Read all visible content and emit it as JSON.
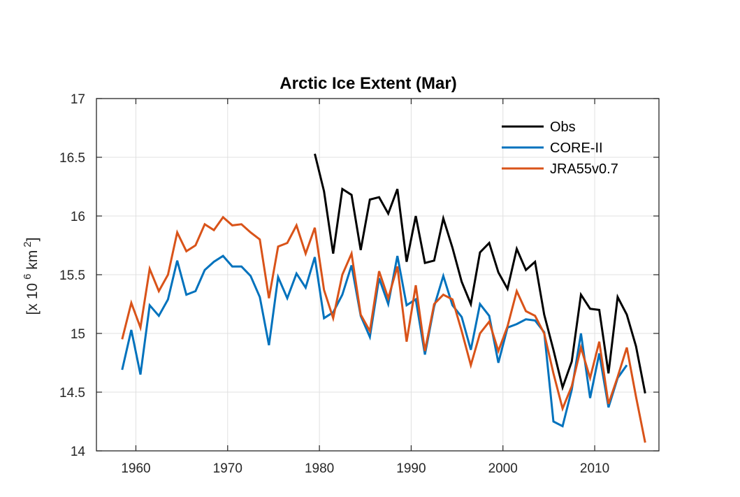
{
  "chart_data": {
    "type": "line",
    "title": "Arctic Ice Extent (Mar)",
    "xlabel": "",
    "ylabel": {
      "prefix": "[x 10",
      "exponent": "6",
      "unit": " km",
      "unit_exponent": "2",
      "suffix": "]"
    },
    "xlim": [
      1955.7,
      2017
    ],
    "ylim": [
      14,
      17
    ],
    "xticks": [
      1960,
      1970,
      1980,
      1990,
      2000,
      2010
    ],
    "xtick_labels": [
      "1960",
      "1970",
      "1980",
      "1990",
      "2000",
      "2010"
    ],
    "yticks": [
      14,
      14.5,
      15,
      15.5,
      16,
      16.5,
      17
    ],
    "ytick_labels": [
      "14",
      "14.5",
      "15",
      "15.5",
      "16",
      "16.5",
      "17"
    ],
    "grid": true,
    "legend_position": "top-right",
    "series": [
      {
        "name": "Obs",
        "color": "#000000",
        "x": [
          1979.5,
          1980.5,
          1981.5,
          1982.5,
          1983.5,
          1984.5,
          1985.5,
          1986.5,
          1987.5,
          1988.5,
          1989.5,
          1990.5,
          1991.5,
          1992.5,
          1993.5,
          1994.5,
          1995.5,
          1996.5,
          1997.5,
          1998.5,
          1999.5,
          2000.5,
          2001.5,
          2002.5,
          2003.5,
          2004.5,
          2005.5,
          2006.5,
          2007.5,
          2008.5,
          2009.5,
          2010.5,
          2011.5,
          2012.5,
          2013.5,
          2014.5,
          2015.5
        ],
        "values": [
          16.53,
          16.21,
          15.68,
          16.23,
          16.18,
          15.71,
          16.14,
          16.16,
          16.02,
          16.23,
          15.61,
          16.0,
          15.6,
          15.62,
          15.98,
          15.73,
          15.44,
          15.25,
          15.69,
          15.77,
          15.52,
          15.38,
          15.72,
          15.54,
          15.61,
          15.16,
          14.86,
          14.54,
          14.76,
          15.33,
          15.21,
          15.2,
          14.66,
          15.31,
          15.16,
          14.89,
          14.49
        ]
      },
      {
        "name": "CORE-II",
        "color": "#0072bd",
        "x": [
          1958.5,
          1959.5,
          1960.5,
          1961.5,
          1962.5,
          1963.5,
          1964.5,
          1965.5,
          1966.5,
          1967.5,
          1968.5,
          1969.5,
          1970.5,
          1971.5,
          1972.5,
          1973.5,
          1974.5,
          1975.5,
          1976.5,
          1977.5,
          1978.5,
          1979.5,
          1980.5,
          1981.5,
          1982.5,
          1983.5,
          1984.5,
          1985.5,
          1986.5,
          1987.5,
          1988.5,
          1989.5,
          1990.5,
          1991.5,
          1992.5,
          1993.5,
          1994.5,
          1995.5,
          1996.5,
          1997.5,
          1998.5,
          1999.5,
          2000.5,
          2001.5,
          2002.5,
          2003.5,
          2004.5,
          2005.5,
          2006.5,
          2007.5,
          2008.5,
          2009.5,
          2010.5,
          2011.5,
          2012.5,
          2013.5
        ],
        "values": [
          14.69,
          15.03,
          14.65,
          15.24,
          15.15,
          15.29,
          15.62,
          15.33,
          15.36,
          15.54,
          15.61,
          15.66,
          15.57,
          15.57,
          15.49,
          15.31,
          14.9,
          15.48,
          15.3,
          15.51,
          15.39,
          15.65,
          15.13,
          15.18,
          15.33,
          15.58,
          15.15,
          14.97,
          15.47,
          15.25,
          15.66,
          15.24,
          15.29,
          14.82,
          15.23,
          15.49,
          15.24,
          15.14,
          14.86,
          15.25,
          15.15,
          14.75,
          15.05,
          15.08,
          15.12,
          15.11,
          15.01,
          14.25,
          14.21,
          14.52,
          15.0,
          14.45,
          14.83,
          14.37,
          14.62,
          14.73
        ]
      },
      {
        "name": "JRA55v0.7",
        "color": "#d95319",
        "x": [
          1958.5,
          1959.5,
          1960.5,
          1961.5,
          1962.5,
          1963.5,
          1964.5,
          1965.5,
          1966.5,
          1967.5,
          1968.5,
          1969.5,
          1970.5,
          1971.5,
          1972.5,
          1973.5,
          1974.5,
          1975.5,
          1976.5,
          1977.5,
          1978.5,
          1979.5,
          1980.5,
          1981.5,
          1982.5,
          1983.5,
          1984.5,
          1985.5,
          1986.5,
          1987.5,
          1988.5,
          1989.5,
          1990.5,
          1991.5,
          1992.5,
          1993.5,
          1994.5,
          1995.5,
          1996.5,
          1997.5,
          1998.5,
          1999.5,
          2000.5,
          2001.5,
          2002.5,
          2003.5,
          2004.5,
          2005.5,
          2006.5,
          2007.5,
          2008.5,
          2009.5,
          2010.5,
          2011.5,
          2012.5,
          2013.5,
          2014.5,
          2015.5
        ],
        "values": [
          14.95,
          15.26,
          15.05,
          15.55,
          15.36,
          15.5,
          15.86,
          15.7,
          15.75,
          15.93,
          15.88,
          15.99,
          15.92,
          15.93,
          15.86,
          15.8,
          15.3,
          15.74,
          15.77,
          15.92,
          15.68,
          15.9,
          15.37,
          15.13,
          15.5,
          15.68,
          15.16,
          15.02,
          15.53,
          15.3,
          15.57,
          14.93,
          15.41,
          14.85,
          15.25,
          15.33,
          15.29,
          15.02,
          14.73,
          15.0,
          15.1,
          14.85,
          15.06,
          15.36,
          15.19,
          15.15,
          15.0,
          14.66,
          14.36,
          14.55,
          14.88,
          14.62,
          14.93,
          14.4,
          14.63,
          14.88,
          14.46,
          14.07
        ]
      }
    ]
  }
}
